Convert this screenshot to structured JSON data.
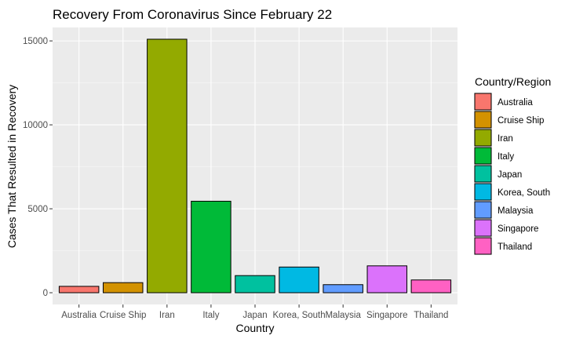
{
  "chart_data": {
    "type": "bar",
    "title": "Recovery From Coronavirus Since February 22",
    "xlabel": "Country",
    "ylabel": "Cases That Resulted in Recovery",
    "ylim": [
      -700,
      15800
    ],
    "yticks": [
      0,
      5000,
      10000,
      15000
    ],
    "grid": true,
    "legend_title": "Country/Region",
    "legend_position": "right",
    "categories": [
      "Australia",
      "Cruise Ship",
      "Iran",
      "Italy",
      "Japan",
      "Korea, South",
      "Malaysia",
      "Singapore",
      "Thailand"
    ],
    "values": [
      380,
      600,
      15100,
      5450,
      1020,
      1530,
      480,
      1600,
      760
    ],
    "colors": [
      "#F8766D",
      "#D39200",
      "#93AA00",
      "#00BA38",
      "#00C19F",
      "#00B9E3",
      "#619CFF",
      "#DB72FB",
      "#FF61C3"
    ]
  }
}
